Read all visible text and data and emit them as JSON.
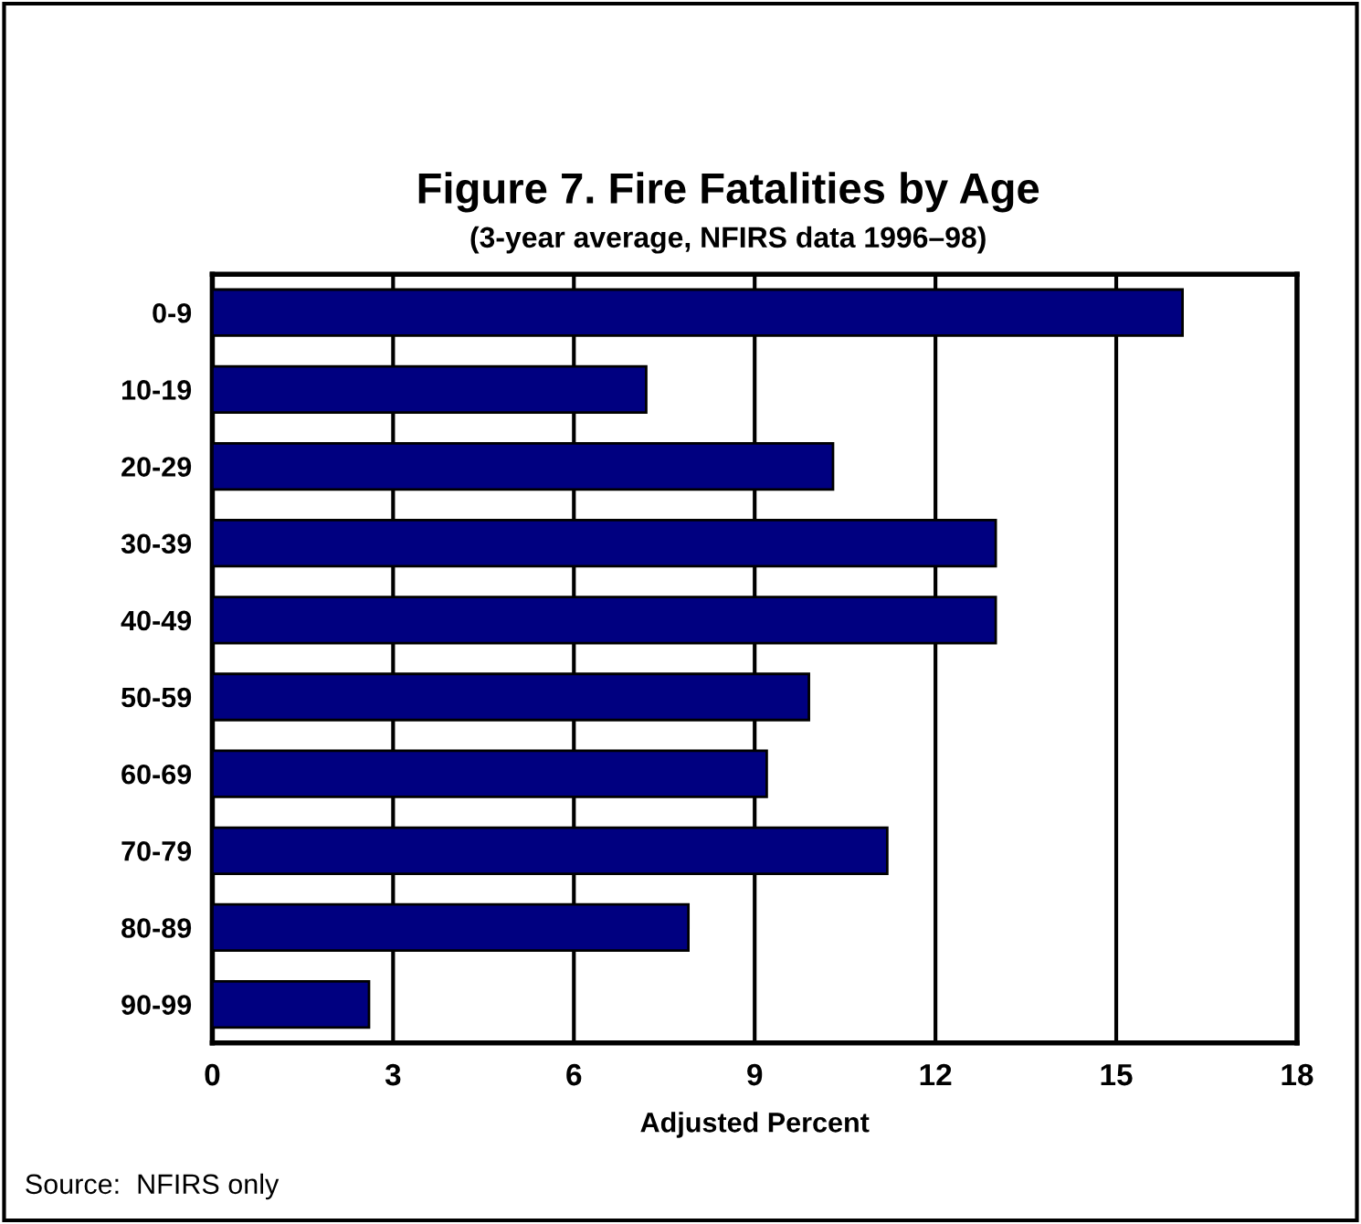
{
  "chart_data": {
    "type": "bar",
    "orientation": "horizontal",
    "title": "Figure 7. Fire Fatalities by Age",
    "subtitle": "(3-year average, NFIRS data 1996–98)",
    "xlabel": "Adjusted Percent",
    "categories": [
      "0-9",
      "10-19",
      "20-29",
      "30-39",
      "40-49",
      "50-59",
      "60-69",
      "70-79",
      "80-89",
      "90-99"
    ],
    "values": [
      16.1,
      7.2,
      10.3,
      13.0,
      13.0,
      9.9,
      9.2,
      11.2,
      7.9,
      2.6
    ],
    "color": "#000080",
    "xlim": [
      0,
      18
    ],
    "xticks": [
      0,
      3,
      6,
      9,
      12,
      15,
      18
    ],
    "grid": "x",
    "annotations": [
      "Source:  NFIRS only"
    ]
  }
}
